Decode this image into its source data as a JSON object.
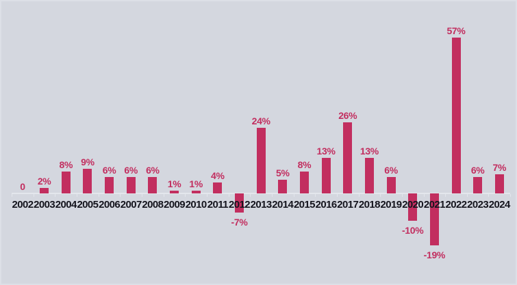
{
  "colors": {
    "background": "#d4d7df",
    "bar": "#c22e5f",
    "value_label": "#c22e5f",
    "year_label": "#14141d",
    "axis_line": "#e3e6ec"
  },
  "chart_data": {
    "type": "bar",
    "title": "",
    "xlabel": "",
    "ylabel": "",
    "unit": "%",
    "grid": false,
    "legend": false,
    "ylim": [
      -19,
      57
    ],
    "categories": [
      "2002",
      "2003",
      "2004",
      "2005",
      "2006",
      "2007",
      "2008",
      "2009",
      "2010",
      "2011",
      "2012",
      "2013",
      "2014",
      "2015",
      "2016",
      "2017",
      "2018",
      "2019",
      "2020",
      "2021",
      "2022",
      "2023",
      "2024"
    ],
    "values": [
      0,
      2,
      8,
      9,
      6,
      6,
      6,
      1,
      1,
      4,
      -7,
      24,
      5,
      8,
      13,
      26,
      13,
      6,
      -10,
      -19,
      57,
      6,
      7
    ],
    "value_labels": [
      "0",
      "2%",
      "8%",
      "9%",
      "6%",
      "6%",
      "6%",
      "1%",
      "1%",
      "4%",
      "-7%",
      "24%",
      "5%",
      "8%",
      "13%",
      "26%",
      "13%",
      "6%",
      "-10%",
      "-19%",
      "57%",
      "6%",
      "7%"
    ]
  }
}
